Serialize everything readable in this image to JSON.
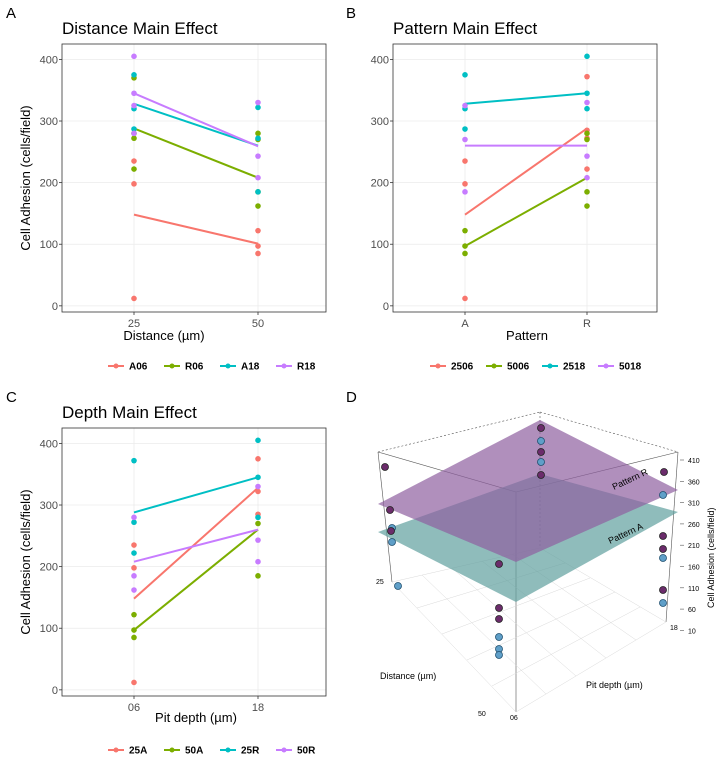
{
  "panel_letters": [
    "A",
    "B",
    "C",
    "D"
  ],
  "chart_data": [
    {
      "type": "scatter",
      "letter": "A",
      "title": "Distance Main Effect",
      "xlabel": "Distance (µm)",
      "ylabel": "Cell Adhesion (cells/field)",
      "categories": [
        "25",
        "50"
      ],
      "yticks": [
        0,
        100,
        200,
        300,
        400
      ],
      "ylim": [
        -10,
        425
      ],
      "grid": true,
      "legend": "bottom",
      "series": [
        {
          "name": "A06",
          "color": "#F8766D",
          "points": [
            [
              0,
              12
            ],
            [
              0,
              198
            ],
            [
              0,
              235
            ],
            [
              1,
              85
            ],
            [
              1,
              97
            ],
            [
              1,
              122
            ]
          ],
          "line": [
            148,
            101
          ]
        },
        {
          "name": "R06",
          "color": "#7CAE00",
          "points": [
            [
              0,
              222
            ],
            [
              0,
              272
            ],
            [
              0,
              280
            ],
            [
              0,
              370
            ],
            [
              1,
              162
            ],
            [
              1,
              185
            ],
            [
              1,
              270
            ],
            [
              1,
              280
            ]
          ],
          "line": [
            288,
            208
          ]
        },
        {
          "name": "A18",
          "color": "#00BFC4",
          "points": [
            [
              0,
              287
            ],
            [
              0,
              320
            ],
            [
              0,
              375
            ],
            [
              1,
              185
            ],
            [
              1,
              272
            ],
            [
              1,
              322
            ]
          ],
          "line": [
            328,
            260
          ]
        },
        {
          "name": "R18",
          "color": "#C77CFF",
          "points": [
            [
              0,
              280
            ],
            [
              0,
              325
            ],
            [
              0,
              345
            ],
            [
              0,
              405
            ],
            [
              1,
              208
            ],
            [
              1,
              243
            ],
            [
              1,
              330
            ]
          ],
          "line": [
            345,
            259
          ]
        }
      ]
    },
    {
      "type": "scatter",
      "letter": "B",
      "title": "Pattern Main Effect",
      "xlabel": "Pattern",
      "ylabel": "",
      "categories": [
        "A",
        "R"
      ],
      "yticks": [
        0,
        100,
        200,
        300,
        400
      ],
      "ylim": [
        -10,
        425
      ],
      "grid": true,
      "legend": "bottom",
      "series": [
        {
          "name": "2506",
          "color": "#F8766D",
          "points": [
            [
              0,
              12
            ],
            [
              0,
              198
            ],
            [
              0,
              235
            ],
            [
              1,
              222
            ],
            [
              1,
              272
            ],
            [
              1,
              285
            ],
            [
              1,
              372
            ]
          ],
          "line": [
            148,
            288
          ]
        },
        {
          "name": "5006",
          "color": "#7CAE00",
          "points": [
            [
              0,
              85
            ],
            [
              0,
              97
            ],
            [
              0,
              122
            ],
            [
              1,
              162
            ],
            [
              1,
              185
            ],
            [
              1,
              270
            ],
            [
              1,
              280
            ]
          ],
          "line": [
            97,
            208
          ]
        },
        {
          "name": "2518",
          "color": "#00BFC4",
          "points": [
            [
              0,
              287
            ],
            [
              0,
              320
            ],
            [
              0,
              375
            ],
            [
              1,
              320
            ],
            [
              1,
              345
            ],
            [
              1,
              405
            ]
          ],
          "line": [
            328,
            345
          ]
        },
        {
          "name": "5018",
          "color": "#C77CFF",
          "points": [
            [
              0,
              185
            ],
            [
              0,
              270
            ],
            [
              0,
              325
            ],
            [
              1,
              208
            ],
            [
              1,
              243
            ],
            [
              1,
              330
            ]
          ],
          "line": [
            260,
            260
          ]
        }
      ]
    },
    {
      "type": "scatter",
      "letter": "C",
      "title": "Depth Main Effect",
      "xlabel": "Pit depth (µm)",
      "ylabel": "Cell Adhesion (cells/field)",
      "categories": [
        "06",
        "18"
      ],
      "yticks": [
        0,
        100,
        200,
        300,
        400
      ],
      "ylim": [
        -10,
        425
      ],
      "grid": true,
      "legend": "bottom",
      "series": [
        {
          "name": "25A",
          "color": "#F8766D",
          "points": [
            [
              0,
              12
            ],
            [
              0,
              198
            ],
            [
              0,
              235
            ],
            [
              1,
              285
            ],
            [
              1,
              322
            ],
            [
              1,
              375
            ]
          ],
          "line": [
            148,
            328
          ]
        },
        {
          "name": "50A",
          "color": "#7CAE00",
          "points": [
            [
              0,
              85
            ],
            [
              0,
              97
            ],
            [
              0,
              122
            ],
            [
              1,
              185
            ],
            [
              1,
              270
            ]
          ],
          "line": [
            97,
            260
          ]
        },
        {
          "name": "25R",
          "color": "#00BFC4",
          "points": [
            [
              0,
              222
            ],
            [
              0,
              272
            ],
            [
              0,
              372
            ],
            [
              1,
              280
            ],
            [
              1,
              345
            ],
            [
              1,
              405
            ]
          ],
          "line": [
            288,
            345
          ]
        },
        {
          "name": "50R",
          "color": "#C77CFF",
          "points": [
            [
              0,
              162
            ],
            [
              0,
              185
            ],
            [
              0,
              280
            ],
            [
              1,
              208
            ],
            [
              1,
              243
            ],
            [
              1,
              330
            ]
          ],
          "line": [
            208,
            260
          ]
        }
      ]
    },
    {
      "type": "surface3d",
      "letter": "D",
      "xlabel": "Distance (µm)",
      "ylabel": "Pit depth (µm)",
      "zlabel": "Cell Adhesion (cells/field)",
      "distance_ticks": [
        "25",
        "50"
      ],
      "depth_ticks": [
        "06",
        "18"
      ],
      "z_ticks": [
        "410",
        "360",
        "310",
        "260",
        "210",
        "160",
        "110",
        "60",
        "10"
      ],
      "planes": [
        {
          "name": "Pattern R",
          "color": "#8E5FA0"
        },
        {
          "name": "Pattern A",
          "color": "#5FA09E"
        }
      ],
      "point_colors": {
        "pattern_r": "#6B2C6B",
        "pattern_a": "#5F9FC8"
      }
    }
  ]
}
